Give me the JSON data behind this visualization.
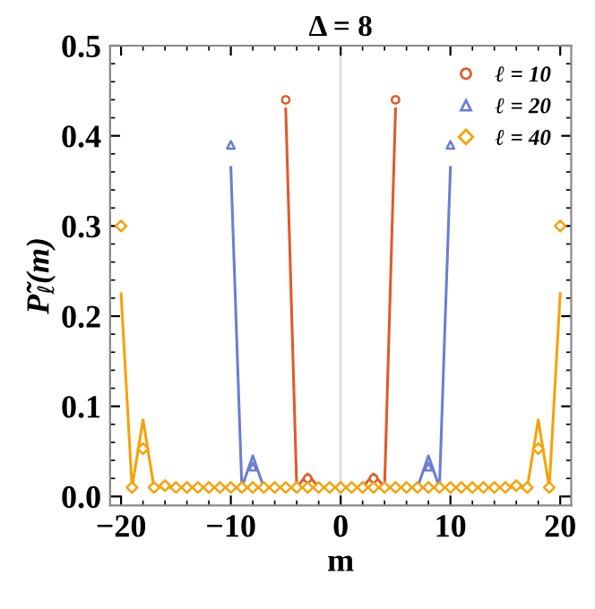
{
  "chart_data": {
    "type": "scatter",
    "title": "Δ = 8",
    "xlabel": "m",
    "ylabel": "P̃$_{ℓ}$(m)",
    "xlim": [
      -21,
      21
    ],
    "ylim": [
      -0.01,
      0.5
    ],
    "xticks": [
      {
        "value": -20,
        "label": "−20"
      },
      {
        "value": -10,
        "label": "−10"
      },
      0,
      10,
      20
    ],
    "yticks": [
      {
        "value": 0,
        "label": "0.0"
      },
      0.1,
      0.2,
      0.3,
      0.4,
      0.5
    ],
    "grid": false,
    "legend": "top right",
    "ref_lines": [
      {
        "axis": "x",
        "value": 0,
        "color": "#dddddd"
      }
    ],
    "series": [
      {
        "type": "line",
        "color": "#e05a2b",
        "x": [
          -5,
          -4,
          -3,
          -2,
          -1,
          0,
          1,
          2,
          3,
          4,
          5
        ],
        "values": [
          0.43,
          0.01,
          0.025,
          0.01,
          0.01,
          0.01,
          0.01,
          0.01,
          0.025,
          0.01,
          0.43
        ]
      },
      {
        "type": "line",
        "color": "#6a7fd0",
        "x": [
          -10,
          -9,
          -8,
          -7,
          -6,
          -5,
          -4,
          -3,
          -2,
          -1,
          0,
          1,
          2,
          3,
          4,
          5,
          6,
          7,
          8,
          9,
          10
        ],
        "values": [
          0.365,
          0.01,
          0.045,
          0.01,
          null,
          null,
          null,
          null,
          null,
          null,
          null,
          null,
          null,
          null,
          null,
          null,
          null,
          0.01,
          0.045,
          0.01,
          0.365
        ]
      },
      {
        "type": "line",
        "color": "#f5a20a",
        "x": [
          -20,
          -19,
          -18,
          -17,
          -16,
          -15,
          -14,
          -13,
          -12,
          -11,
          -10,
          -9,
          -8,
          -7,
          -6,
          -5,
          -4,
          -3,
          -2,
          -1,
          0,
          1,
          2,
          3,
          4,
          5,
          6,
          7,
          8,
          9,
          10,
          11,
          12,
          13,
          14,
          15,
          16,
          17,
          18,
          19,
          20
        ],
        "values": [
          0.225,
          0.01,
          0.085,
          0.01,
          0.01,
          0.01,
          0.01,
          0.01,
          0.01,
          0.01,
          0.01,
          0.01,
          0.01,
          0.01,
          0.01,
          0.01,
          0.01,
          0.01,
          0.01,
          0.01,
          0.01,
          0.01,
          0.01,
          0.01,
          0.01,
          0.01,
          0.01,
          0.01,
          0.01,
          0.01,
          0.01,
          0.01,
          0.01,
          0.01,
          0.01,
          0.01,
          0.01,
          0.01,
          0.085,
          0.01,
          0.225
        ]
      },
      {
        "name": "ℓ = 10",
        "marker": "circle",
        "color": "#e05a2b",
        "x": [
          -5,
          -4,
          -3,
          -2,
          -1,
          0,
          1,
          2,
          3,
          4,
          5
        ],
        "values": [
          0.44,
          null,
          0.02,
          null,
          null,
          null,
          null,
          null,
          0.02,
          null,
          0.44
        ]
      },
      {
        "name": "ℓ = 20",
        "marker": "triangle",
        "color": "#6a7fd0",
        "x": [
          -10,
          -9,
          -8,
          -7,
          -6,
          -5,
          -4,
          -3,
          -2,
          -1,
          0,
          1,
          2,
          3,
          4,
          5,
          6,
          7,
          8,
          9,
          10
        ],
        "values": [
          0.39,
          null,
          0.033,
          null,
          null,
          null,
          null,
          null,
          null,
          null,
          null,
          null,
          null,
          null,
          null,
          null,
          null,
          null,
          0.033,
          null,
          0.39
        ]
      },
      {
        "name": "ℓ = 40",
        "marker": "diamond",
        "color": "#f5a20a",
        "x": [
          -20,
          -19,
          -18,
          -17,
          -16,
          -15,
          -14,
          -13,
          -12,
          -11,
          -10,
          -9,
          -8,
          -7,
          -6,
          -5,
          -4,
          -3,
          -2,
          -1,
          0,
          1,
          2,
          3,
          4,
          5,
          6,
          7,
          8,
          9,
          10,
          11,
          12,
          13,
          14,
          15,
          16,
          17,
          18,
          19,
          20
        ],
        "values": [
          0.3,
          0.01,
          0.053,
          0.01,
          0.012,
          0.01,
          0.01,
          0.01,
          0.01,
          0.01,
          0.01,
          0.01,
          0.01,
          0.01,
          0.01,
          0.01,
          0.01,
          0.01,
          0.01,
          0.01,
          0.01,
          0.01,
          0.01,
          0.01,
          0.01,
          0.01,
          0.01,
          0.01,
          0.01,
          0.01,
          0.01,
          0.01,
          0.01,
          0.01,
          0.01,
          0.01,
          0.012,
          0.01,
          0.053,
          0.01,
          0.3
        ]
      }
    ]
  }
}
